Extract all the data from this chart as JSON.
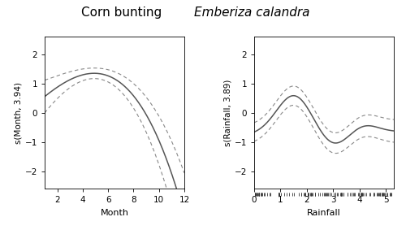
{
  "title_regular": "Corn bunting",
  "title_italic": "Emberiza calandra",
  "panel1_ylabel": "s(Month, 3.94)",
  "panel1_xlabel": "Month",
  "panel1_xlim": [
    1,
    12
  ],
  "panel1_ylim": [
    -2.6,
    2.6
  ],
  "panel1_xticks": [
    2,
    4,
    6,
    8,
    10,
    12
  ],
  "panel1_yticks": [
    -2,
    -1,
    0,
    1,
    2
  ],
  "panel2_ylabel": "s(Rainfall, 3.89)",
  "panel2_xlabel": "Rainfall",
  "panel2_xlim": [
    0,
    5.3
  ],
  "panel2_ylim": [
    -2.6,
    2.6
  ],
  "panel2_xticks": [
    0,
    1,
    2,
    3,
    4,
    5
  ],
  "panel2_yticks": [
    -2,
    -1,
    0,
    1,
    2
  ],
  "line_color": "#555555",
  "ci_color": "#888888",
  "bg_color": "#ffffff"
}
